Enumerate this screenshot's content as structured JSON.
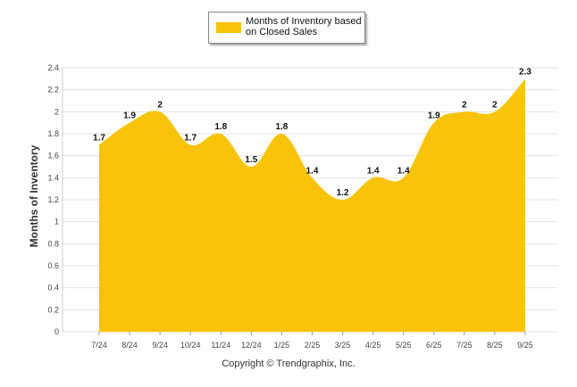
{
  "chart_data": {
    "type": "area",
    "categories": [
      "7/24",
      "8/24",
      "9/24",
      "10/24",
      "11/24",
      "12/24",
      "1/25",
      "2/25",
      "3/25",
      "4/25",
      "5/25",
      "6/25",
      "7/25",
      "8/25",
      "9/25"
    ],
    "series": [
      {
        "name": "Months of Inventory based on Closed Sales",
        "values": [
          1.7,
          1.9,
          2,
          1.7,
          1.8,
          1.5,
          1.8,
          1.4,
          1.2,
          1.4,
          1.4,
          1.9,
          2,
          2,
          2.3
        ],
        "labels": [
          "1.7",
          "1.9",
          "2",
          "1.7",
          "1.8",
          "1.5",
          "1.8",
          "1.4",
          "1.2",
          "1.4",
          "1.4",
          "1.9",
          "2",
          "2",
          "2.3"
        ],
        "color": "#F8C40A"
      }
    ],
    "yticks": [
      "0",
      "0.2",
      "0.4",
      "0.6",
      "0.8",
      "1",
      "1.2",
      "1.4",
      "1.6",
      "1.8",
      "2",
      "2.2",
      "2.4"
    ],
    "ylim": [
      0,
      2.4
    ],
    "ylabel": "Months of Inventory",
    "legend_position": "top",
    "grid": true
  },
  "legend": {
    "line1": "Months of Inventory based",
    "line2": "on Closed Sales"
  },
  "footer": "Copyright © Trendgraphix, Inc."
}
